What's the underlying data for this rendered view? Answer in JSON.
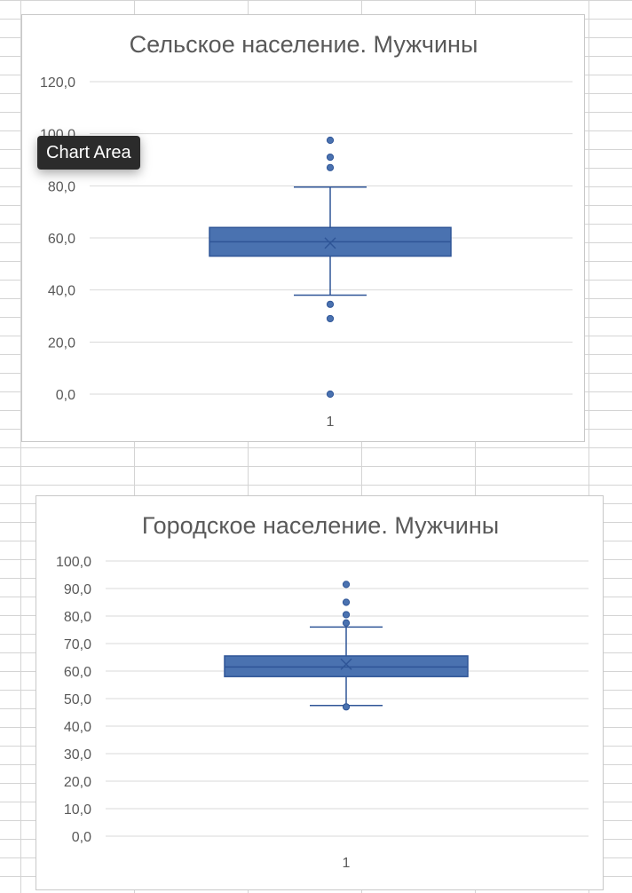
{
  "tooltip": {
    "label": "Chart Area"
  },
  "chart_data": [
    {
      "type": "boxplot",
      "title": "Сельское население. Мужчины",
      "xlabel": "",
      "ylabel": "",
      "categories": [
        "1"
      ],
      "ylim": [
        0,
        120
      ],
      "yticks": [
        0,
        20,
        40,
        60,
        80,
        100,
        120
      ],
      "ytick_labels": [
        "0,0",
        "20,0",
        "40,0",
        "60,0",
        "80,0",
        "100,0",
        "120,0"
      ],
      "grid": true,
      "color": "#4a72b0",
      "edge_color": "#2f5597",
      "box": {
        "whisker_low": 38.0,
        "q1": 53.0,
        "median": 58.5,
        "mean": 58.0,
        "q3": 64.0,
        "whisker_high": 79.5
      },
      "outliers": [
        97.5,
        91.0,
        87.0,
        34.5,
        29.0,
        0.0
      ]
    },
    {
      "type": "boxplot",
      "title": "Городское население. Мужчины",
      "xlabel": "",
      "ylabel": "",
      "categories": [
        "1"
      ],
      "ylim": [
        0,
        100
      ],
      "yticks": [
        0,
        10,
        20,
        30,
        40,
        50,
        60,
        70,
        80,
        90,
        100
      ],
      "ytick_labels": [
        "0,0",
        "10,0",
        "20,0",
        "30,0",
        "40,0",
        "50,0",
        "60,0",
        "70,0",
        "80,0",
        "90,0",
        "100,0"
      ],
      "grid": true,
      "color": "#4a72b0",
      "edge_color": "#2f5597",
      "box": {
        "whisker_low": 47.5,
        "q1": 58.0,
        "median": 61.5,
        "mean": 62.5,
        "q3": 65.5,
        "whisker_high": 76.0
      },
      "outliers": [
        91.5,
        85.0,
        80.5,
        77.5,
        47.0
      ]
    }
  ]
}
